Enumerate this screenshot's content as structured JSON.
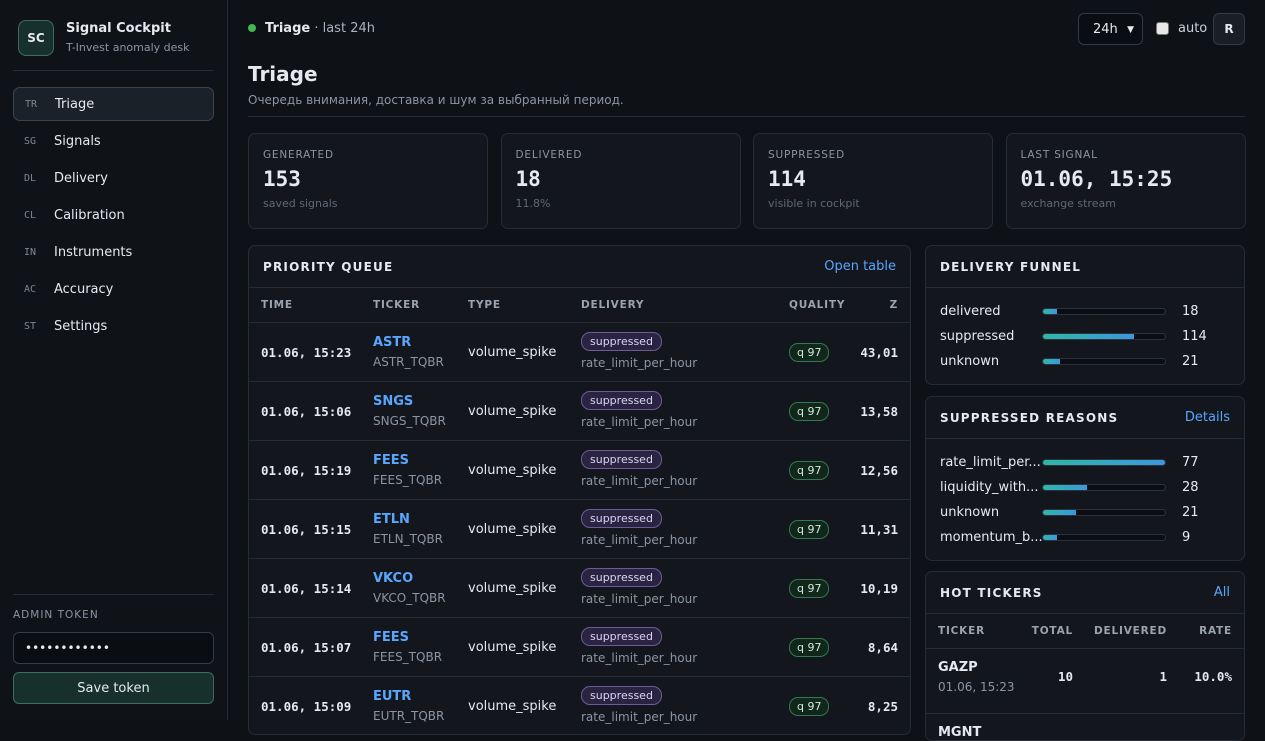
{
  "brand": {
    "logo": "SC",
    "name": "Signal Cockpit",
    "subtitle": "T-Invest anomaly desk"
  },
  "nav": [
    {
      "code": "TR",
      "label": "Triage"
    },
    {
      "code": "SG",
      "label": "Signals"
    },
    {
      "code": "DL",
      "label": "Delivery"
    },
    {
      "code": "CL",
      "label": "Calibration"
    },
    {
      "code": "IN",
      "label": "Instruments"
    },
    {
      "code": "AC",
      "label": "Accuracy"
    },
    {
      "code": "ST",
      "label": "Settings"
    }
  ],
  "admin": {
    "label": "ADMIN TOKEN",
    "token": "••••••••••••",
    "button": "Save token"
  },
  "topbar": {
    "page": "Triage",
    "period": "· last 24h",
    "range": "24h",
    "auto": "auto",
    "refresh": "R"
  },
  "header": {
    "title": "Triage",
    "subtitle": "Очередь внимания, доставка и шум за выбранный период."
  },
  "kpis": [
    {
      "label": "GENERATED",
      "value": 153,
      "note": "saved signals"
    },
    {
      "label": "DELIVERED",
      "value": 18,
      "note": "11.8%"
    },
    {
      "label": "SUPPRESSED",
      "value": 114,
      "note": "visible in cockpit"
    },
    {
      "label": "LAST SIGNAL",
      "value": "01.06, 15:25",
      "note": "exchange stream"
    }
  ],
  "queue": {
    "title": "PRIORITY QUEUE",
    "link": "Open table",
    "columns": [
      "TIME",
      "TICKER",
      "TYPE",
      "DELIVERY",
      "QUALITY",
      "Z"
    ],
    "rows": [
      {
        "time": "01.06, 15:23",
        "ticker": "ASTR",
        "instrument": "ASTR_TQBR",
        "type": "volume_spike",
        "status": "suppressed",
        "reason": "rate_limit_per_hour",
        "quality": "q 97",
        "z": "43,01"
      },
      {
        "time": "01.06, 15:06",
        "ticker": "SNGS",
        "instrument": "SNGS_TQBR",
        "type": "volume_spike",
        "status": "suppressed",
        "reason": "rate_limit_per_hour",
        "quality": "q 97",
        "z": "13,58"
      },
      {
        "time": "01.06, 15:19",
        "ticker": "FEES",
        "instrument": "FEES_TQBR",
        "type": "volume_spike",
        "status": "suppressed",
        "reason": "rate_limit_per_hour",
        "quality": "q 97",
        "z": "12,56"
      },
      {
        "time": "01.06, 15:15",
        "ticker": "ETLN",
        "instrument": "ETLN_TQBR",
        "type": "volume_spike",
        "status": "suppressed",
        "reason": "rate_limit_per_hour",
        "quality": "q 97",
        "z": "11,31"
      },
      {
        "time": "01.06, 15:14",
        "ticker": "VKCO",
        "instrument": "VKCO_TQBR",
        "type": "volume_spike",
        "status": "suppressed",
        "reason": "rate_limit_per_hour",
        "quality": "q 97",
        "z": "10,19"
      },
      {
        "time": "01.06, 15:07",
        "ticker": "FEES",
        "instrument": "FEES_TQBR",
        "type": "volume_spike",
        "status": "suppressed",
        "reason": "rate_limit_per_hour",
        "quality": "q 97",
        "z": "8,64"
      },
      {
        "time": "01.06, 15:09",
        "ticker": "EUTR",
        "instrument": "EUTR_TQBR",
        "type": "volume_spike",
        "status": "suppressed",
        "reason": "rate_limit_per_hour",
        "quality": "q 97",
        "z": "8,25"
      }
    ]
  },
  "funnel": {
    "title": "DELIVERY FUNNEL",
    "items": [
      {
        "label": "delivered",
        "value": 18
      },
      {
        "label": "suppressed",
        "value": 114
      },
      {
        "label": "unknown",
        "value": 21
      }
    ]
  },
  "reasons": {
    "title": "SUPPRESSED REASONS",
    "link": "Details",
    "items": [
      {
        "label": "rate_limit_per...",
        "value": 77
      },
      {
        "label": "liquidity_with...",
        "value": 28
      },
      {
        "label": "unknown",
        "value": 21
      },
      {
        "label": "momentum_b...",
        "value": 9
      }
    ]
  },
  "hot": {
    "title": "HOT TICKERS",
    "link": "All",
    "columns": [
      "TICKER",
      "TOTAL",
      "DELIVERED",
      "RATE"
    ],
    "rows": [
      {
        "ticker": "GAZP",
        "time": "01.06, 15:23",
        "total": 10,
        "delivered": 1,
        "rate": "10.0%"
      },
      {
        "ticker": "MGNT"
      }
    ]
  }
}
